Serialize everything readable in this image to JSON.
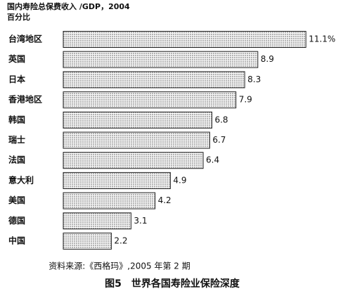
{
  "chart_data": {
    "type": "bar",
    "orientation": "horizontal",
    "title": "国内寿险总保费收入 /GDP，2004",
    "subtitle": "百分比",
    "categories": [
      "台湾地区",
      "英国",
      "日本",
      "香港地区",
      "韩国",
      "瑞士",
      "法国",
      "意大利",
      "美国",
      "德国",
      "中国"
    ],
    "values": [
      11.1,
      8.9,
      8.3,
      7.9,
      6.8,
      6.7,
      6.4,
      4.9,
      4.2,
      3.1,
      2.2
    ],
    "value_labels": [
      "11.1%",
      "8.9",
      "8.3",
      "7.9",
      "6.8",
      "6.7",
      "6.4",
      "4.9",
      "4.2",
      "3.1",
      "2.2"
    ],
    "color": "#c4c4c4",
    "source": "资料来源:《西格玛》,2005 年第 2 期",
    "caption": "图5　世界各国寿险业保险深度"
  }
}
